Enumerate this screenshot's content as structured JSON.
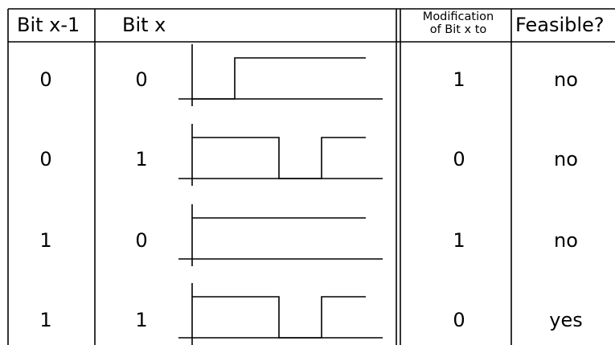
{
  "headers": {
    "bit_prev": "Bit x-1",
    "bit_x": "Bit x",
    "modification_line1": "Modification",
    "modification_line2": "of Bit x to",
    "feasible": "Feasible?"
  },
  "rows": [
    {
      "bit_prev": "0",
      "bit_x": "0",
      "modification": "1",
      "feasible": "no",
      "waveform": "rise"
    },
    {
      "bit_prev": "0",
      "bit_x": "1",
      "modification": "0",
      "feasible": "no",
      "waveform": "high-dip"
    },
    {
      "bit_prev": "1",
      "bit_x": "0",
      "modification": "1",
      "feasible": "no",
      "waveform": "high"
    },
    {
      "bit_prev": "1",
      "bit_x": "1",
      "modification": "0",
      "feasible": "yes",
      "waveform": "high-dip"
    }
  ]
}
